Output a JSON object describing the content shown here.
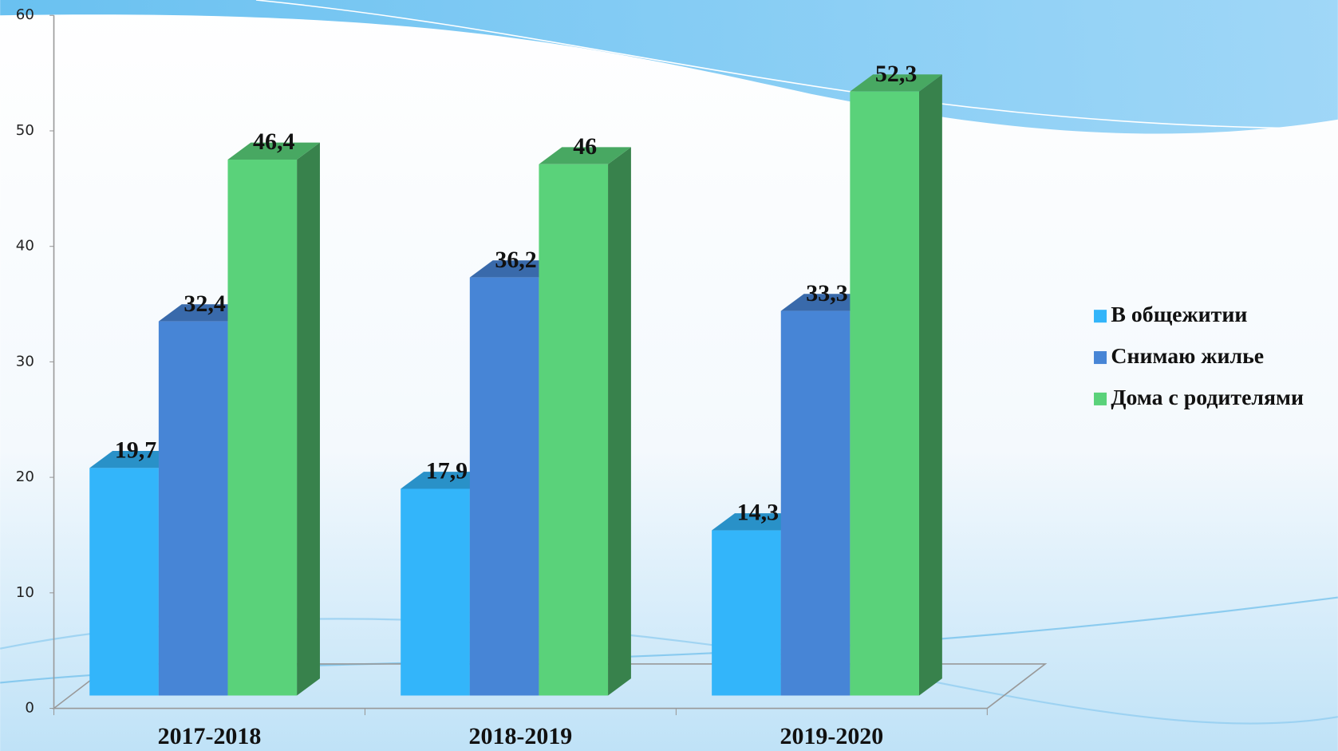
{
  "chart_data": {
    "type": "bar",
    "categories": [
      "2017-2018",
      "2018-2019",
      "2019-2020"
    ],
    "series": [
      {
        "name": "В общежитии",
        "color": "#33b5fa",
        "values": [
          19.7,
          17.9,
          14.3
        ],
        "value_labels": [
          "19,7",
          "17,9",
          "14,3"
        ]
      },
      {
        "name": "Снимаю жилье",
        "color": "#4785d6",
        "values": [
          32.4,
          36.2,
          33.3
        ],
        "value_labels": [
          "32,4",
          "36,2",
          "33,3"
        ]
      },
      {
        "name": "Дома с родителями",
        "color": "#5ad27a",
        "values": [
          46.4,
          46,
          52.3
        ],
        "value_labels": [
          "46,4",
          "46",
          "52,3"
        ]
      }
    ],
    "ylim": [
      0,
      60
    ],
    "yticks": [
      0,
      10,
      20,
      30,
      40,
      50,
      60
    ],
    "legend": "right"
  }
}
